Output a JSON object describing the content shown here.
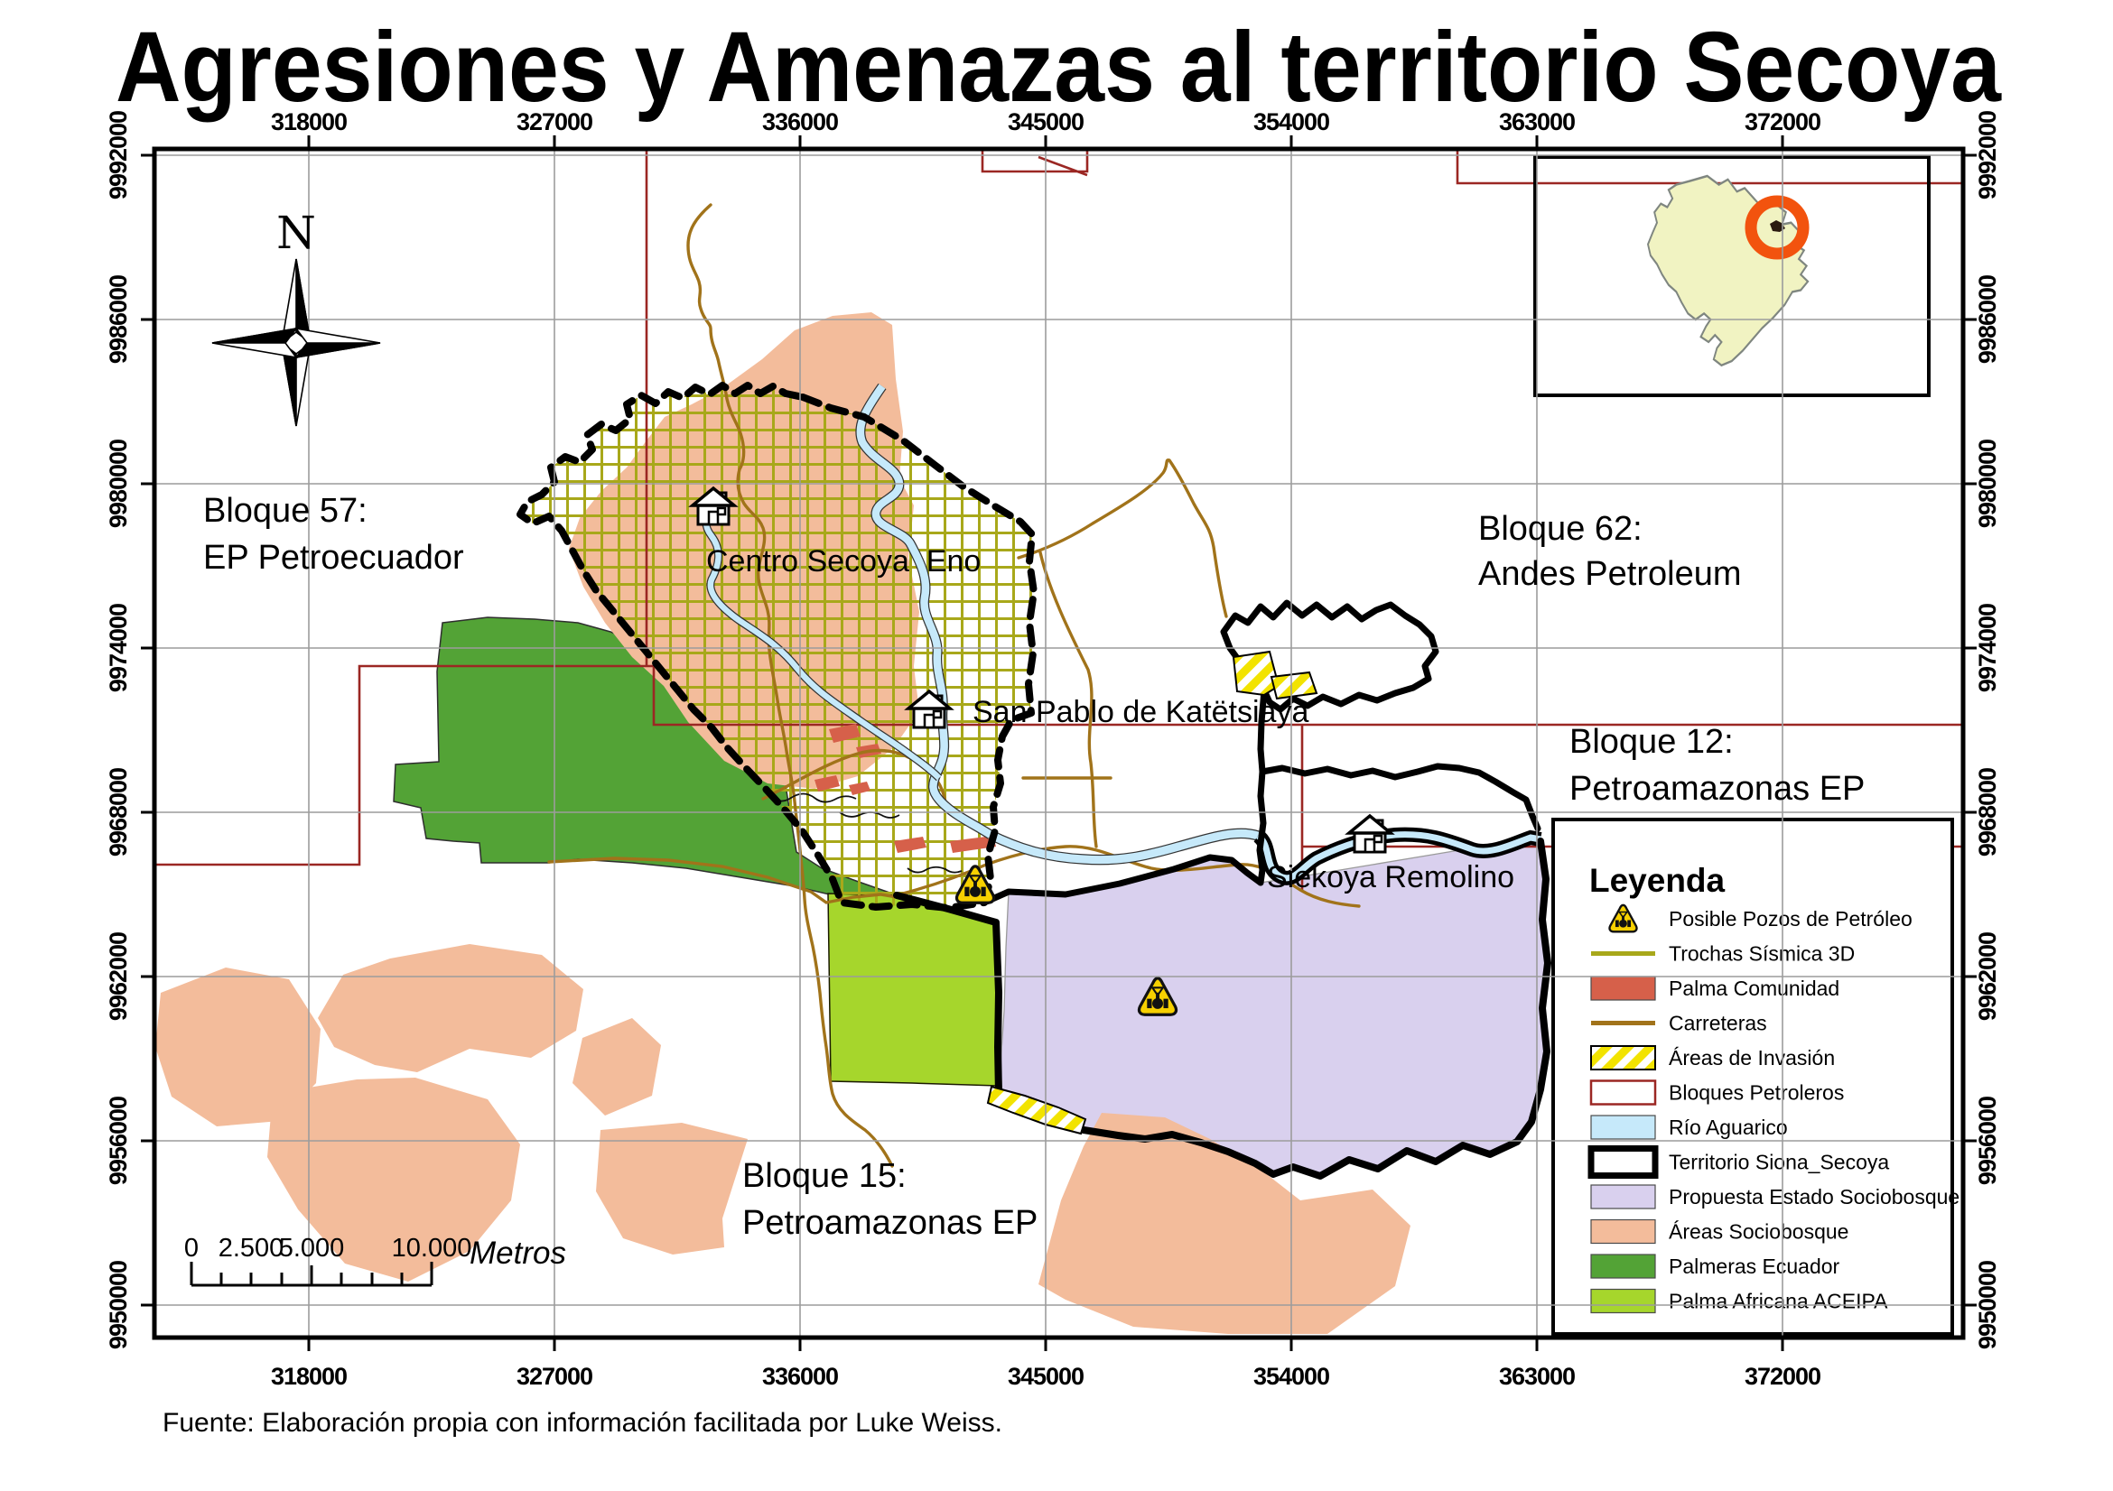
{
  "title": "Agresiones y Amenazas al territorio Secoya",
  "source": "Fuente: Elaboración propia con información facilitada por Luke Weiss.",
  "north": {
    "label": "N"
  },
  "axes": {
    "x_ticks": [
      "318000",
      "327000",
      "336000",
      "345000",
      "354000",
      "363000",
      "372000"
    ],
    "y_ticks": [
      "9992000",
      "9986000",
      "9980000",
      "9974000",
      "9968000",
      "9962000",
      "9956000",
      "9950000"
    ]
  },
  "scale_bar": {
    "labels": [
      "0",
      "2.500",
      "5.000",
      "10.000"
    ],
    "unit": "Metros"
  },
  "map_labels": {
    "bloque57": {
      "line1": "Bloque 57:",
      "line2": "EP Petroecuador"
    },
    "bloque62": {
      "line1": "Bloque 62:",
      "line2": "Andes Petroleum"
    },
    "bloque12": {
      "line1": "Bloque 12:",
      "line2": "Petroamazonas EP"
    },
    "bloque15": {
      "line1": "Bloque 15:",
      "line2": "Petroamazonas EP"
    },
    "centro_secoya": "Centro Secoya  Eno",
    "san_pablo": "San Pablo de Katëtsiaya",
    "siekoya": "Siekoya Remolino"
  },
  "legend": {
    "title": "Leyenda",
    "items": [
      {
        "name": "posible-pozos-de-petroleo",
        "label": "Posible Pozos de Petróleo",
        "symbol": "well-warning",
        "color": "#F7D000"
      },
      {
        "name": "trochas-sismica-3d",
        "label": "Trochas Sísmica 3D",
        "symbol": "line",
        "color": "#A8A81A"
      },
      {
        "name": "palma-comunidad",
        "label": "Palma Comunidad",
        "symbol": "fill",
        "color": "#D6604A"
      },
      {
        "name": "carreteras",
        "label": "Carreteras",
        "symbol": "line",
        "color": "#A1731A"
      },
      {
        "name": "areas-de-invasion",
        "label": "Áreas de Invasión",
        "symbol": "hatch",
        "color": "#F2E300"
      },
      {
        "name": "bloques-petroleros",
        "label": "Bloques Petroleros",
        "symbol": "fill-border",
        "color": "#FFFFFF",
        "border": "#9B2723"
      },
      {
        "name": "rio-aguarico",
        "label": "Río Aguarico",
        "symbol": "fill",
        "color": "#C6E9FA"
      },
      {
        "name": "territorio-siona-secoya",
        "label": "Territorio Siona_Secoya",
        "symbol": "fill-border-thick",
        "color": "#FFFFFF",
        "border": "#000000"
      },
      {
        "name": "propuesta-estado-sociobosque",
        "label": "Propuesta Estado Sociobosque",
        "symbol": "fill",
        "color": "#D9D0EE"
      },
      {
        "name": "areas-sociobosque",
        "label": "Áreas Sociobosque",
        "symbol": "fill",
        "color": "#F3BC9B"
      },
      {
        "name": "palmeras-ecuador",
        "label": "Palmeras Ecuador",
        "symbol": "fill",
        "color": "#53A336"
      },
      {
        "name": "palma-africana-aceipa",
        "label": "Palma Africana ACEIPA",
        "symbol": "fill",
        "color": "#A6D62C"
      }
    ]
  },
  "colors": {
    "frame": "#000000",
    "graticule": "#9C9C9C",
    "bloques_border": "#9B2723",
    "road": "#A1731A",
    "seismic_grid": "#A8A81A",
    "river_fill": "#C6E9FA",
    "sociobosque": "#F3BC9B",
    "propuesta": "#D9D0EE",
    "palmeras": "#53A336",
    "aceipa": "#A6D62C",
    "palma_comunidad": "#D6604A",
    "ecuador_fill": "#F1F3C2",
    "highlight_ring": "#F2530E",
    "warning_yellow": "#F7D000"
  }
}
